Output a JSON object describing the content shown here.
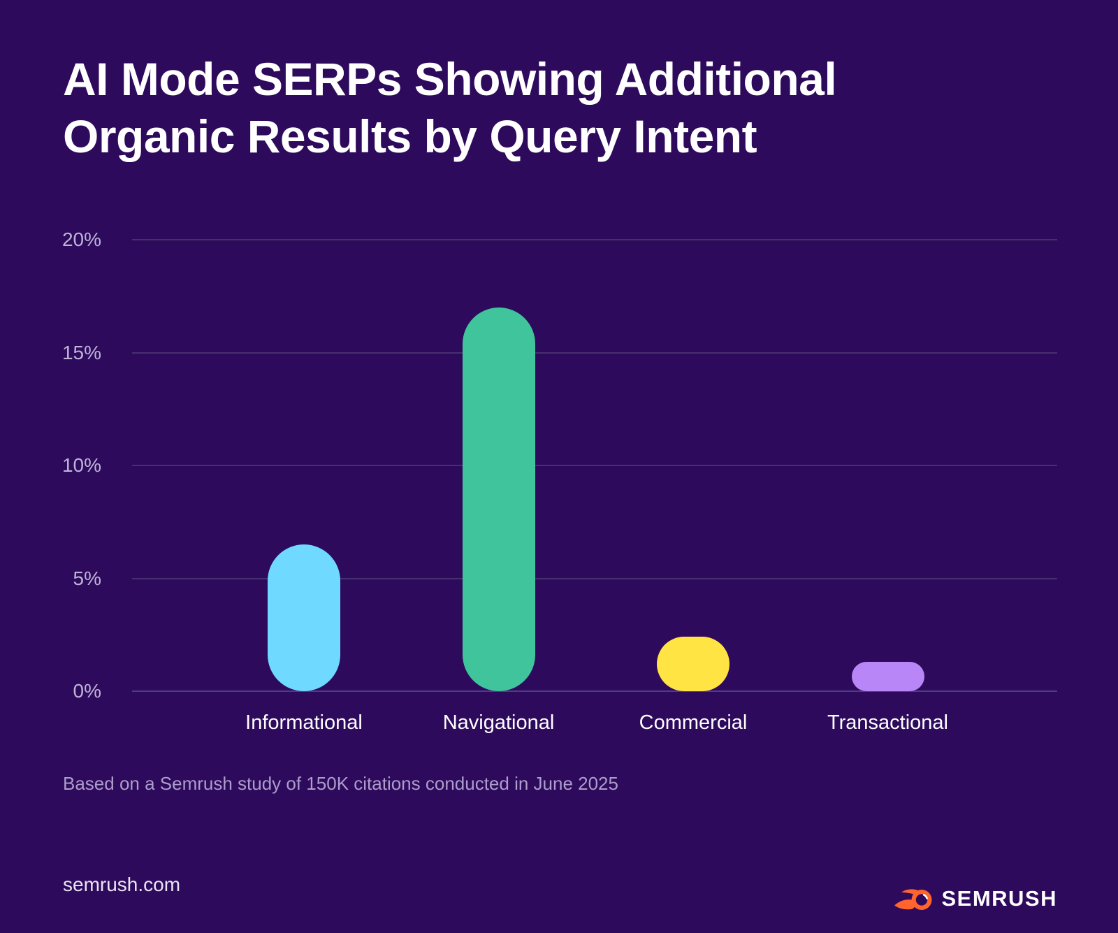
{
  "title_lines": [
    "AI Mode SERPs Showing Additional",
    "Organic Results by Query Intent"
  ],
  "chart_data": {
    "type": "bar",
    "title": "AI Mode SERPs Showing Additional Organic Results by Query Intent",
    "categories": [
      "Informational",
      "Navigational",
      "Commercial",
      "Transactional"
    ],
    "values": [
      6.5,
      17,
      2.4,
      1.3
    ],
    "unit": "%",
    "series_colors": [
      "#6FD9FF",
      "#3FC49C",
      "#FFE443",
      "#B886F6"
    ],
    "xlabel": "",
    "ylabel": "",
    "ylim": [
      0,
      20
    ],
    "y_ticks": [
      {
        "value": 20,
        "label": "20%"
      },
      {
        "value": 15,
        "label": "15%"
      },
      {
        "value": 10,
        "label": "10%"
      },
      {
        "value": 5,
        "label": "5%"
      },
      {
        "value": 0,
        "label": "0%"
      }
    ],
    "grid": true,
    "legend": false,
    "bar_shape": "pill"
  },
  "footnote": "Based on a Semrush study of 150K citations conducted in June 2025",
  "footer": {
    "site": "semrush.com",
    "brand": "SEMRUSH"
  },
  "colors": {
    "background": "#2E0A5C",
    "title_text": "#FFFFFF",
    "tick_label": "#BEB4D8",
    "category_label": "#FFFFFF",
    "gridline": "#45316F",
    "axis_line": "#4E3C86",
    "footnote_text": "#AC9DCC",
    "site_text": "#E9E5F3",
    "brand_orange": "#FF642D",
    "brand_text": "#FFFFFF"
  }
}
